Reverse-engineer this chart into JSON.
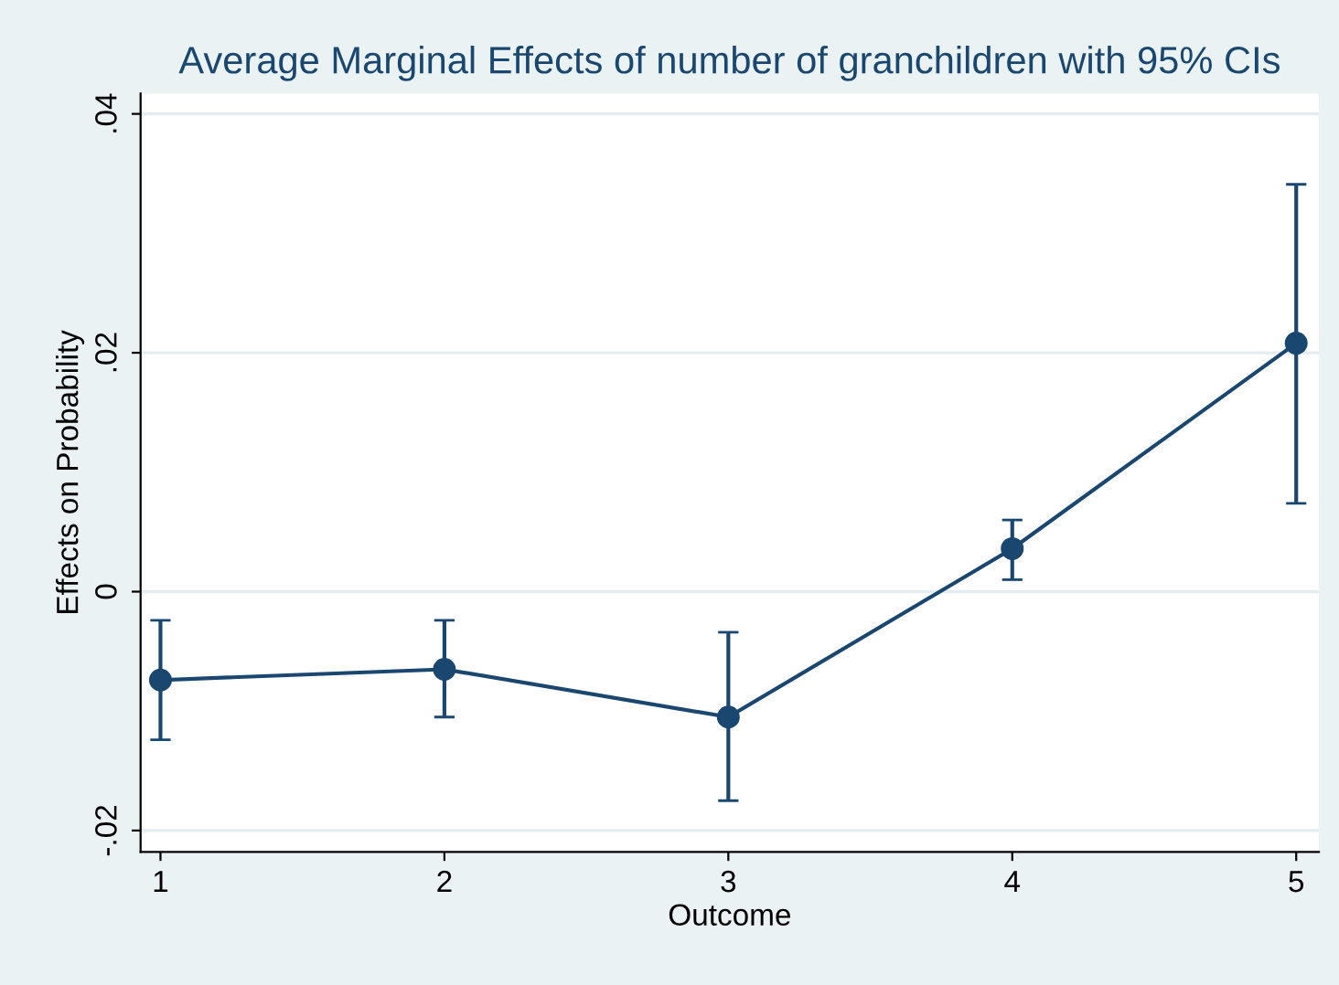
{
  "chart_data": {
    "type": "line",
    "title": "Average Marginal Effects of number of granchildren with 95% CIs",
    "xlabel": "Outcome",
    "ylabel": "Effects on Probability",
    "x": [
      1,
      2,
      3,
      4,
      5
    ],
    "series": [
      {
        "color": "#1a476f",
        "values": [
          -0.0074,
          -0.0065,
          -0.0105,
          0.0036,
          0.0208
        ],
        "errors": [
          [
            -0.0124,
            -0.0024
          ],
          [
            -0.0105,
            -0.0024
          ],
          [
            -0.0175,
            -0.0034
          ],
          [
            0.001,
            0.006
          ],
          [
            0.0074,
            0.0341
          ]
        ]
      }
    ],
    "xlim": [
      0.93,
      5.08
    ],
    "xticks": [
      1,
      2,
      3,
      4,
      5
    ],
    "ylim": [
      -0.0218,
      0.0417
    ],
    "yticks": [
      {
        "value": -0.02,
        "label": "-.02"
      },
      {
        "value": 0,
        "label": "0"
      },
      {
        "value": 0.02,
        "label": ".02"
      },
      {
        "value": 0.04,
        "label": ".04"
      }
    ],
    "grid": "y",
    "marker": "circle",
    "line_style": "solid",
    "legend": false
  }
}
